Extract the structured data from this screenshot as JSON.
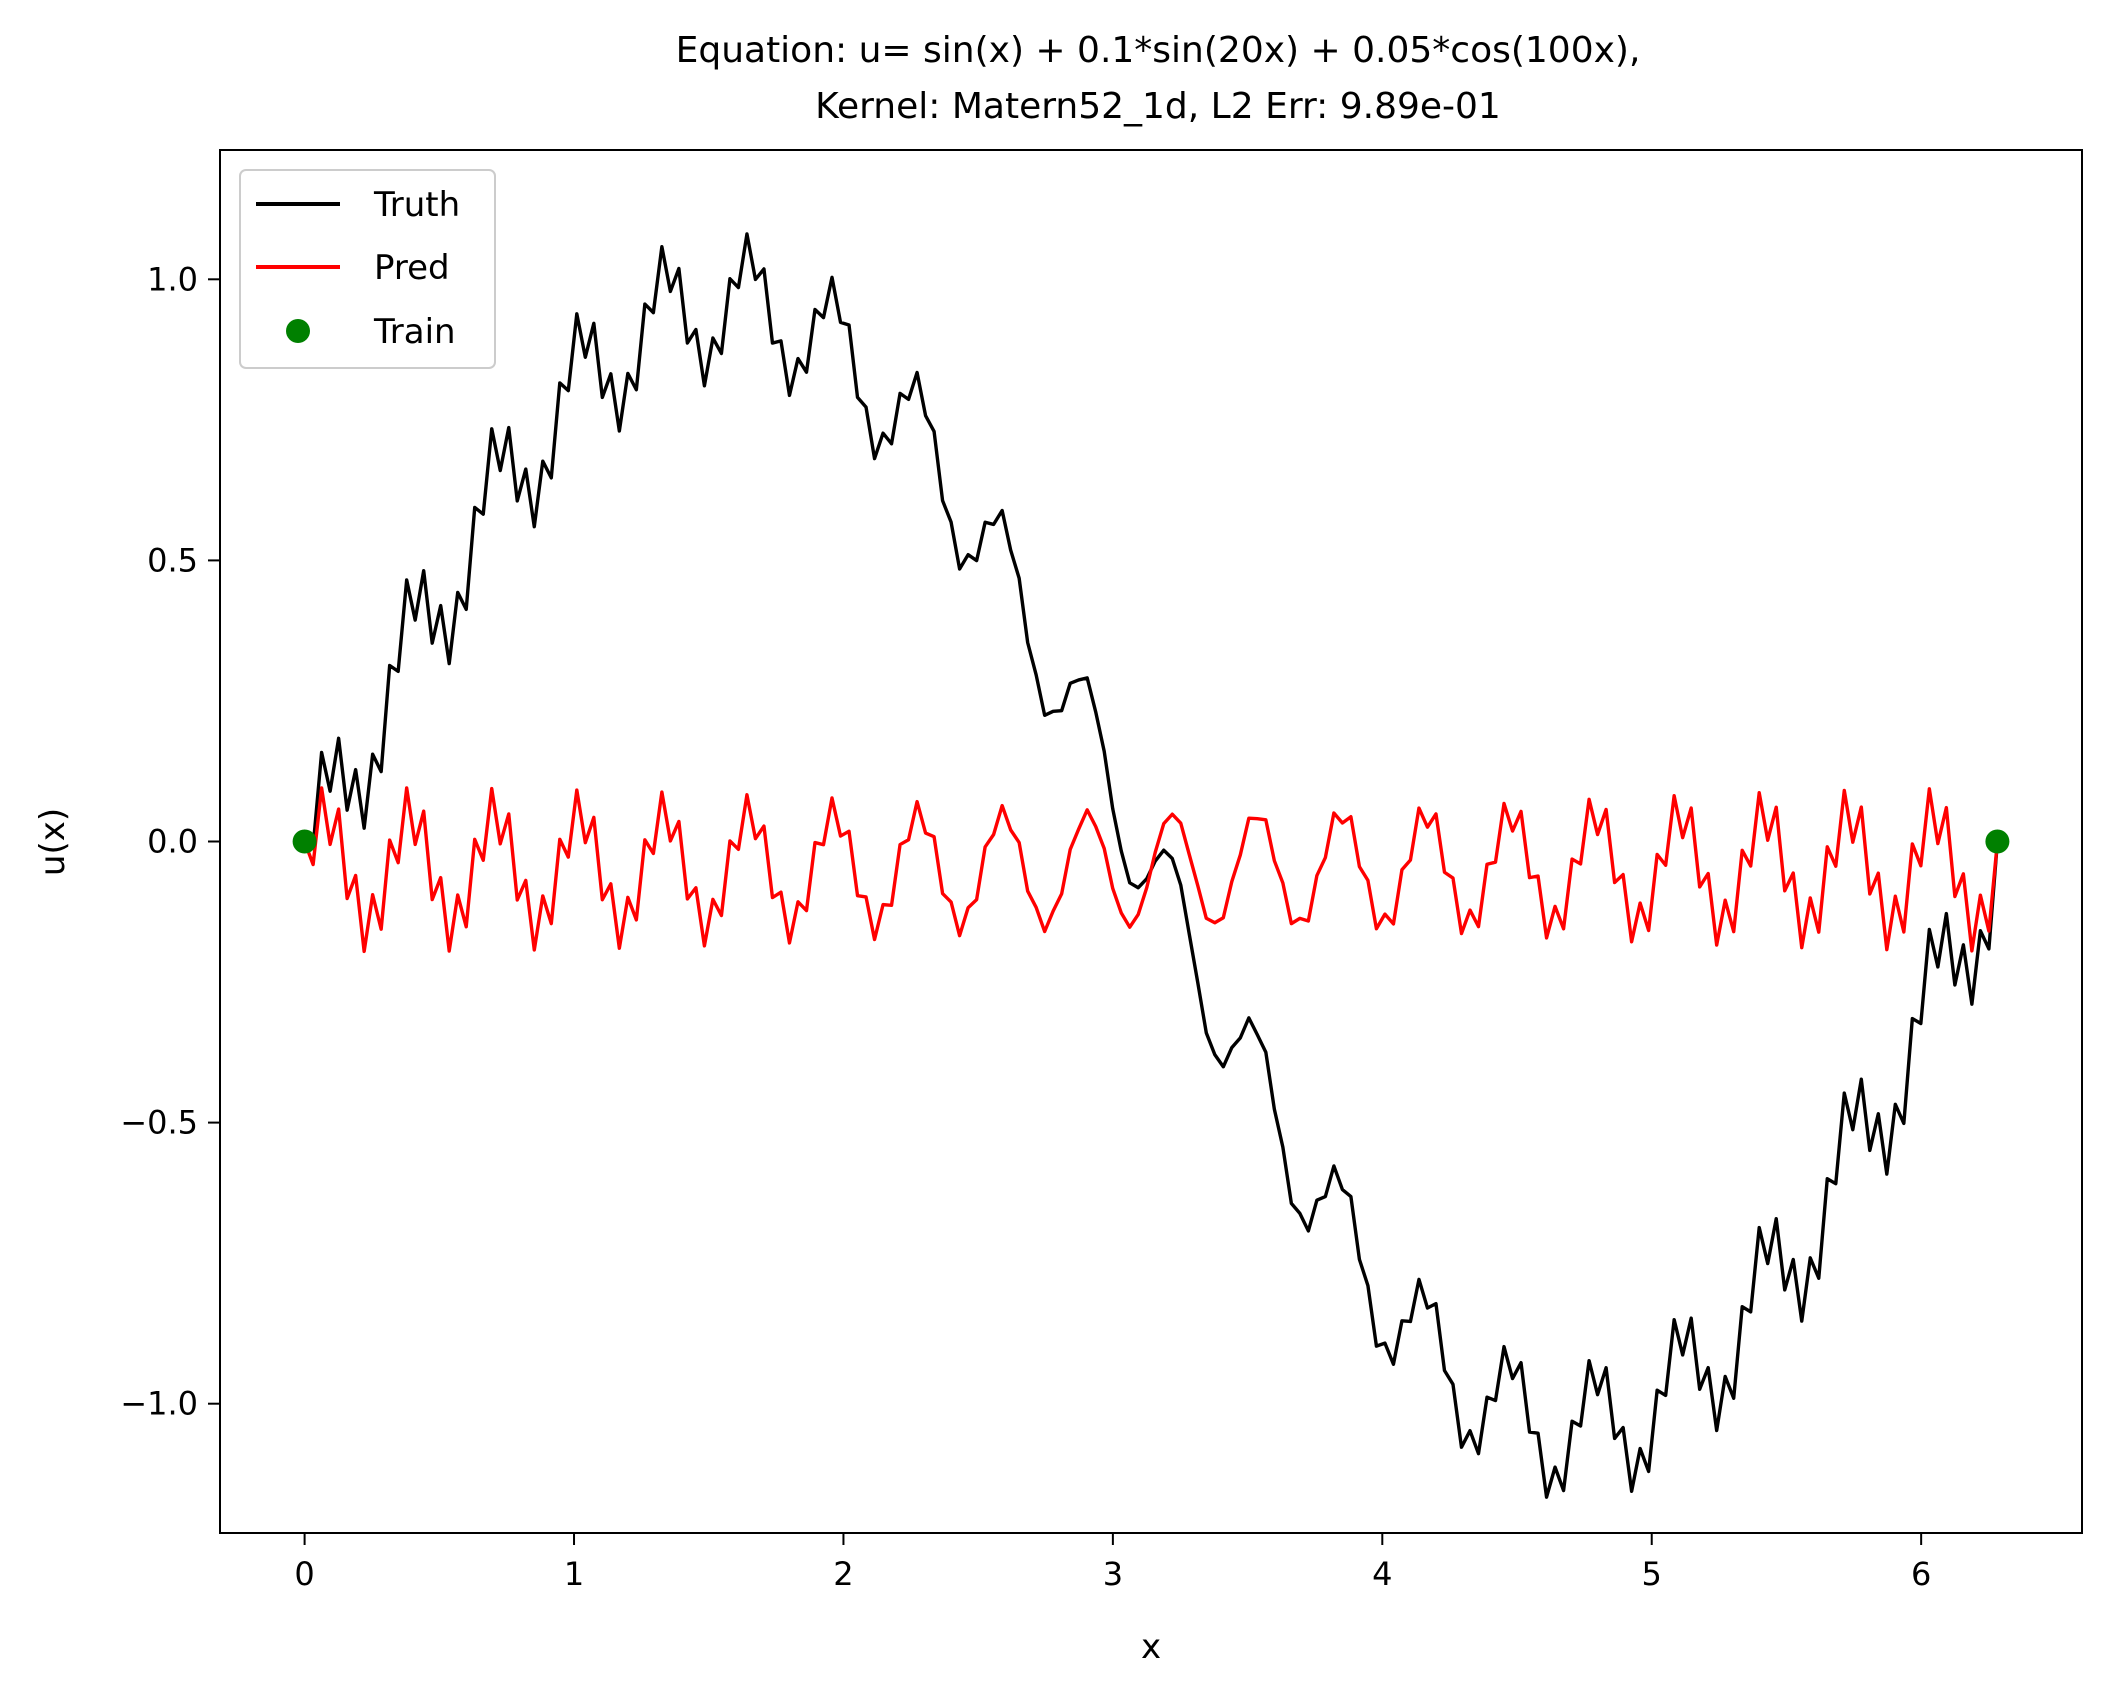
{
  "chart_data": {
    "type": "line",
    "title_lines": [
      "Equation: u= sin(x) + 0.1*sin(20x) + 0.05*cos(100x),",
      "Kernel: Matern52_1d,   L2 Err: 9.89e-01"
    ],
    "xlabel": "x",
    "ylabel": "u(x)",
    "xlim": [
      -0.314,
      6.597
    ],
    "ylim": [
      -1.23,
      1.23
    ],
    "xticks": [
      0,
      1,
      2,
      3,
      4,
      5,
      6
    ],
    "xtick_labels": [
      "0",
      "1",
      "2",
      "3",
      "4",
      "5",
      "6"
    ],
    "yticks": [
      -1.0,
      -0.5,
      0.0,
      0.5,
      1.0
    ],
    "ytick_labels": [
      "−1.0",
      "−0.5",
      "0.0",
      "0.5",
      "1.0"
    ],
    "grid": false,
    "legend_position": "top-left",
    "series": [
      {
        "name": "Truth",
        "kind": "line",
        "color": "#000000",
        "x_range": [
          0,
          6.283
        ],
        "samples": 200,
        "terms": [
          {
            "fn": "sin",
            "amp": 1.0,
            "freq": 1
          },
          {
            "fn": "sin",
            "amp": 0.1,
            "freq": 20
          },
          {
            "fn": "cos",
            "amp": 0.05,
            "freq": 100
          }
        ],
        "offset": -0.05
      },
      {
        "name": "Pred",
        "kind": "line",
        "color": "#ff0000",
        "x_range": [
          0,
          6.283
        ],
        "samples": 200,
        "terms": [
          {
            "fn": "sin",
            "amp": 0.1,
            "freq": 20
          },
          {
            "fn": "cos",
            "amp": 0.05,
            "freq": 100
          }
        ],
        "offset": -0.05
      },
      {
        "name": "Train",
        "kind": "scatter",
        "color": "#008000",
        "points": [
          [
            0,
            0.0
          ],
          [
            6.283,
            0.0
          ]
        ]
      }
    ]
  }
}
